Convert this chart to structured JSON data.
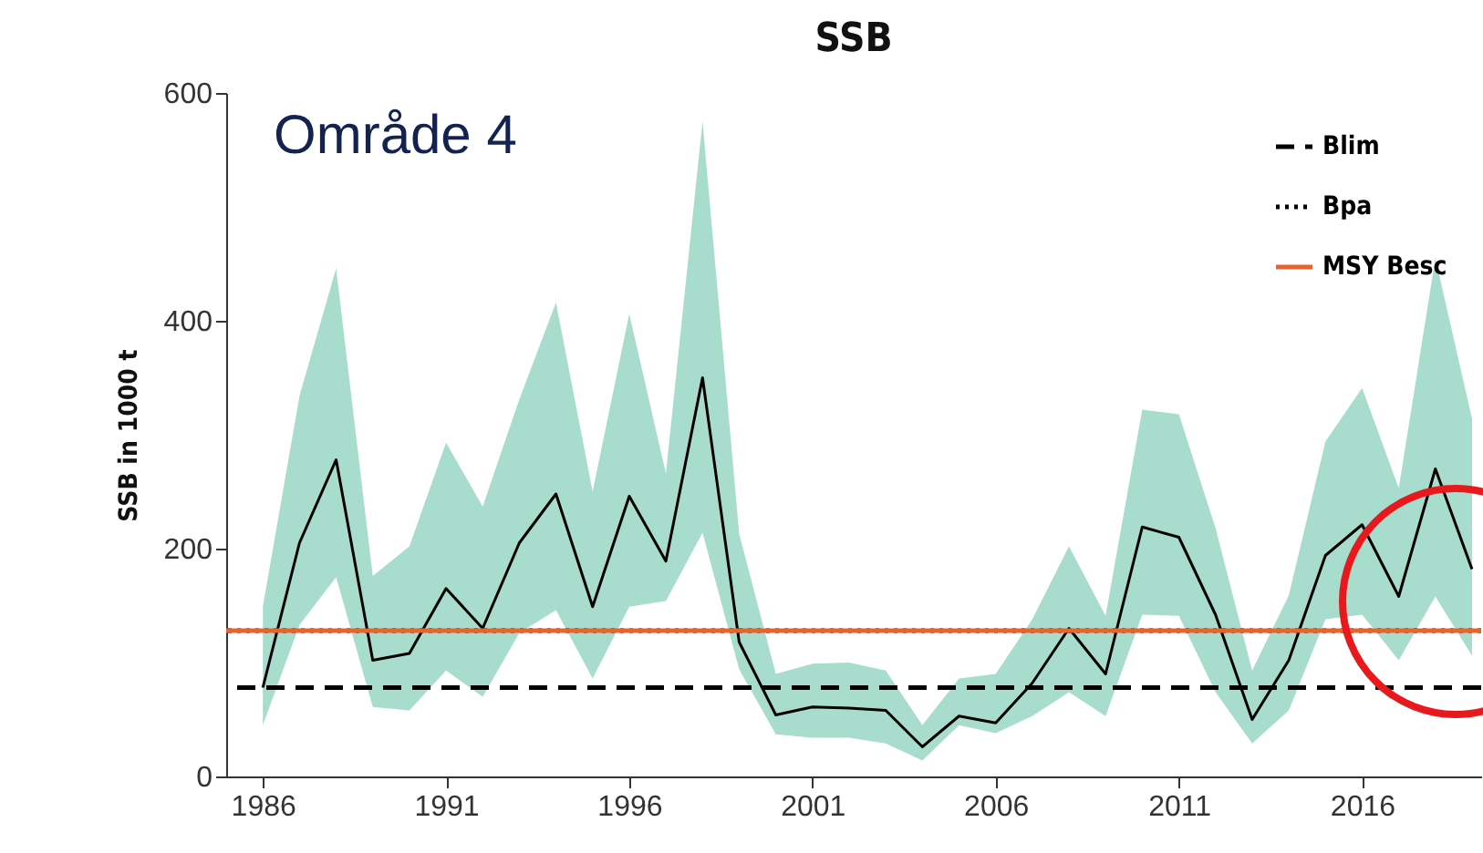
{
  "chart_data": {
    "type": "line",
    "title": "SSB",
    "ylabel": "SSB in 1000 t",
    "annotations": [
      "Område 4"
    ],
    "x": [
      1986,
      1987,
      1988,
      1989,
      1990,
      1991,
      1992,
      1993,
      1994,
      1995,
      1996,
      1997,
      1998,
      1999,
      2000,
      2001,
      2002,
      2003,
      2004,
      2005,
      2006,
      2007,
      2008,
      2009,
      2010,
      2011,
      2012,
      2013,
      2014,
      2015,
      2016,
      2017,
      2018,
      2019
    ],
    "series": [
      {
        "color": "#000000",
        "values": [
          78,
          205,
          278,
          102,
          108,
          165,
          130,
          205,
          248,
          149,
          246,
          189,
          350,
          118,
          54,
          61,
          60,
          58,
          26,
          53,
          47,
          82,
          130,
          90,
          219,
          210,
          142,
          50,
          102,
          194,
          221,
          158,
          270,
          182
        ],
        "lower": [
          45,
          133,
          175,
          61,
          58,
          93,
          70,
          126,
          146,
          86,
          149,
          154,
          214,
          94,
          37,
          34,
          34,
          29,
          14,
          45,
          38,
          53,
          74,
          53,
          142,
          141,
          74,
          29,
          58,
          138,
          142,
          102,
          158,
          106
        ],
        "upper": [
          149,
          334,
          446,
          176,
          202,
          293,
          237,
          331,
          416,
          250,
          406,
          266,
          575,
          213,
          90,
          99,
          100,
          93,
          45,
          86,
          90,
          138,
          202,
          141,
          322,
          318,
          218,
          93,
          159,
          294,
          341,
          253,
          455,
          314
        ]
      }
    ],
    "ref_lines": [
      {
        "axis": "y",
        "value": 78,
        "label": "Blim",
        "color": "#000000",
        "line_style": "dashed"
      },
      {
        "axis": "y",
        "value": 128,
        "label": "Bpa",
        "color": "#000000",
        "line_style": "dotted"
      },
      {
        "axis": "y",
        "value": 128,
        "label": "MSY Besc",
        "color": "#e8642c",
        "line_style": "solid"
      }
    ],
    "xlim": [
      1985,
      2019.25
    ],
    "xticks": [
      1986,
      1991,
      1996,
      2001,
      2006,
      2011,
      2016
    ],
    "ylim": [
      0,
      600
    ],
    "yticks": [
      0,
      200,
      400,
      600
    ],
    "legend": "top right",
    "grid": false
  }
}
